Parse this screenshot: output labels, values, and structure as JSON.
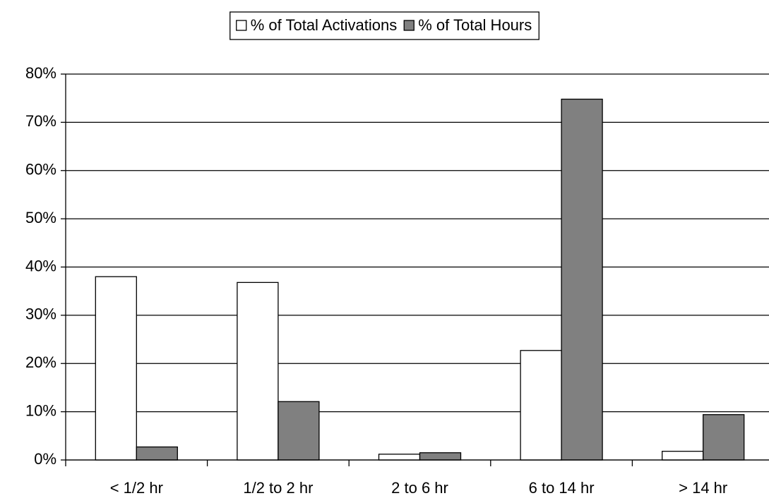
{
  "chart_data": {
    "type": "bar",
    "categories": [
      "< 1/2 hr",
      "1/2 to 2 hr",
      "2 to 6 hr",
      "6 to 14 hr",
      "> 14 hr"
    ],
    "series": [
      {
        "name": "% of Total Activations",
        "color": "#ffffff",
        "values": [
          38,
          36.8,
          1.2,
          22.7,
          1.8
        ]
      },
      {
        "name": "% of Total Hours",
        "color": "#808080",
        "values": [
          2.7,
          12.1,
          1.5,
          74.8,
          9.4
        ]
      }
    ],
    "ylim": [
      0,
      80
    ],
    "yticks": [
      {
        "value": 0,
        "label": "0%"
      },
      {
        "value": 10,
        "label": "10%"
      },
      {
        "value": 20,
        "label": "20%"
      },
      {
        "value": 30,
        "label": "30%"
      },
      {
        "value": 40,
        "label": "40%"
      },
      {
        "value": 50,
        "label": "50%"
      },
      {
        "value": 60,
        "label": "60%"
      },
      {
        "value": 70,
        "label": "70%"
      },
      {
        "value": 80,
        "label": "80%"
      }
    ],
    "grid": true,
    "legend": "top"
  }
}
